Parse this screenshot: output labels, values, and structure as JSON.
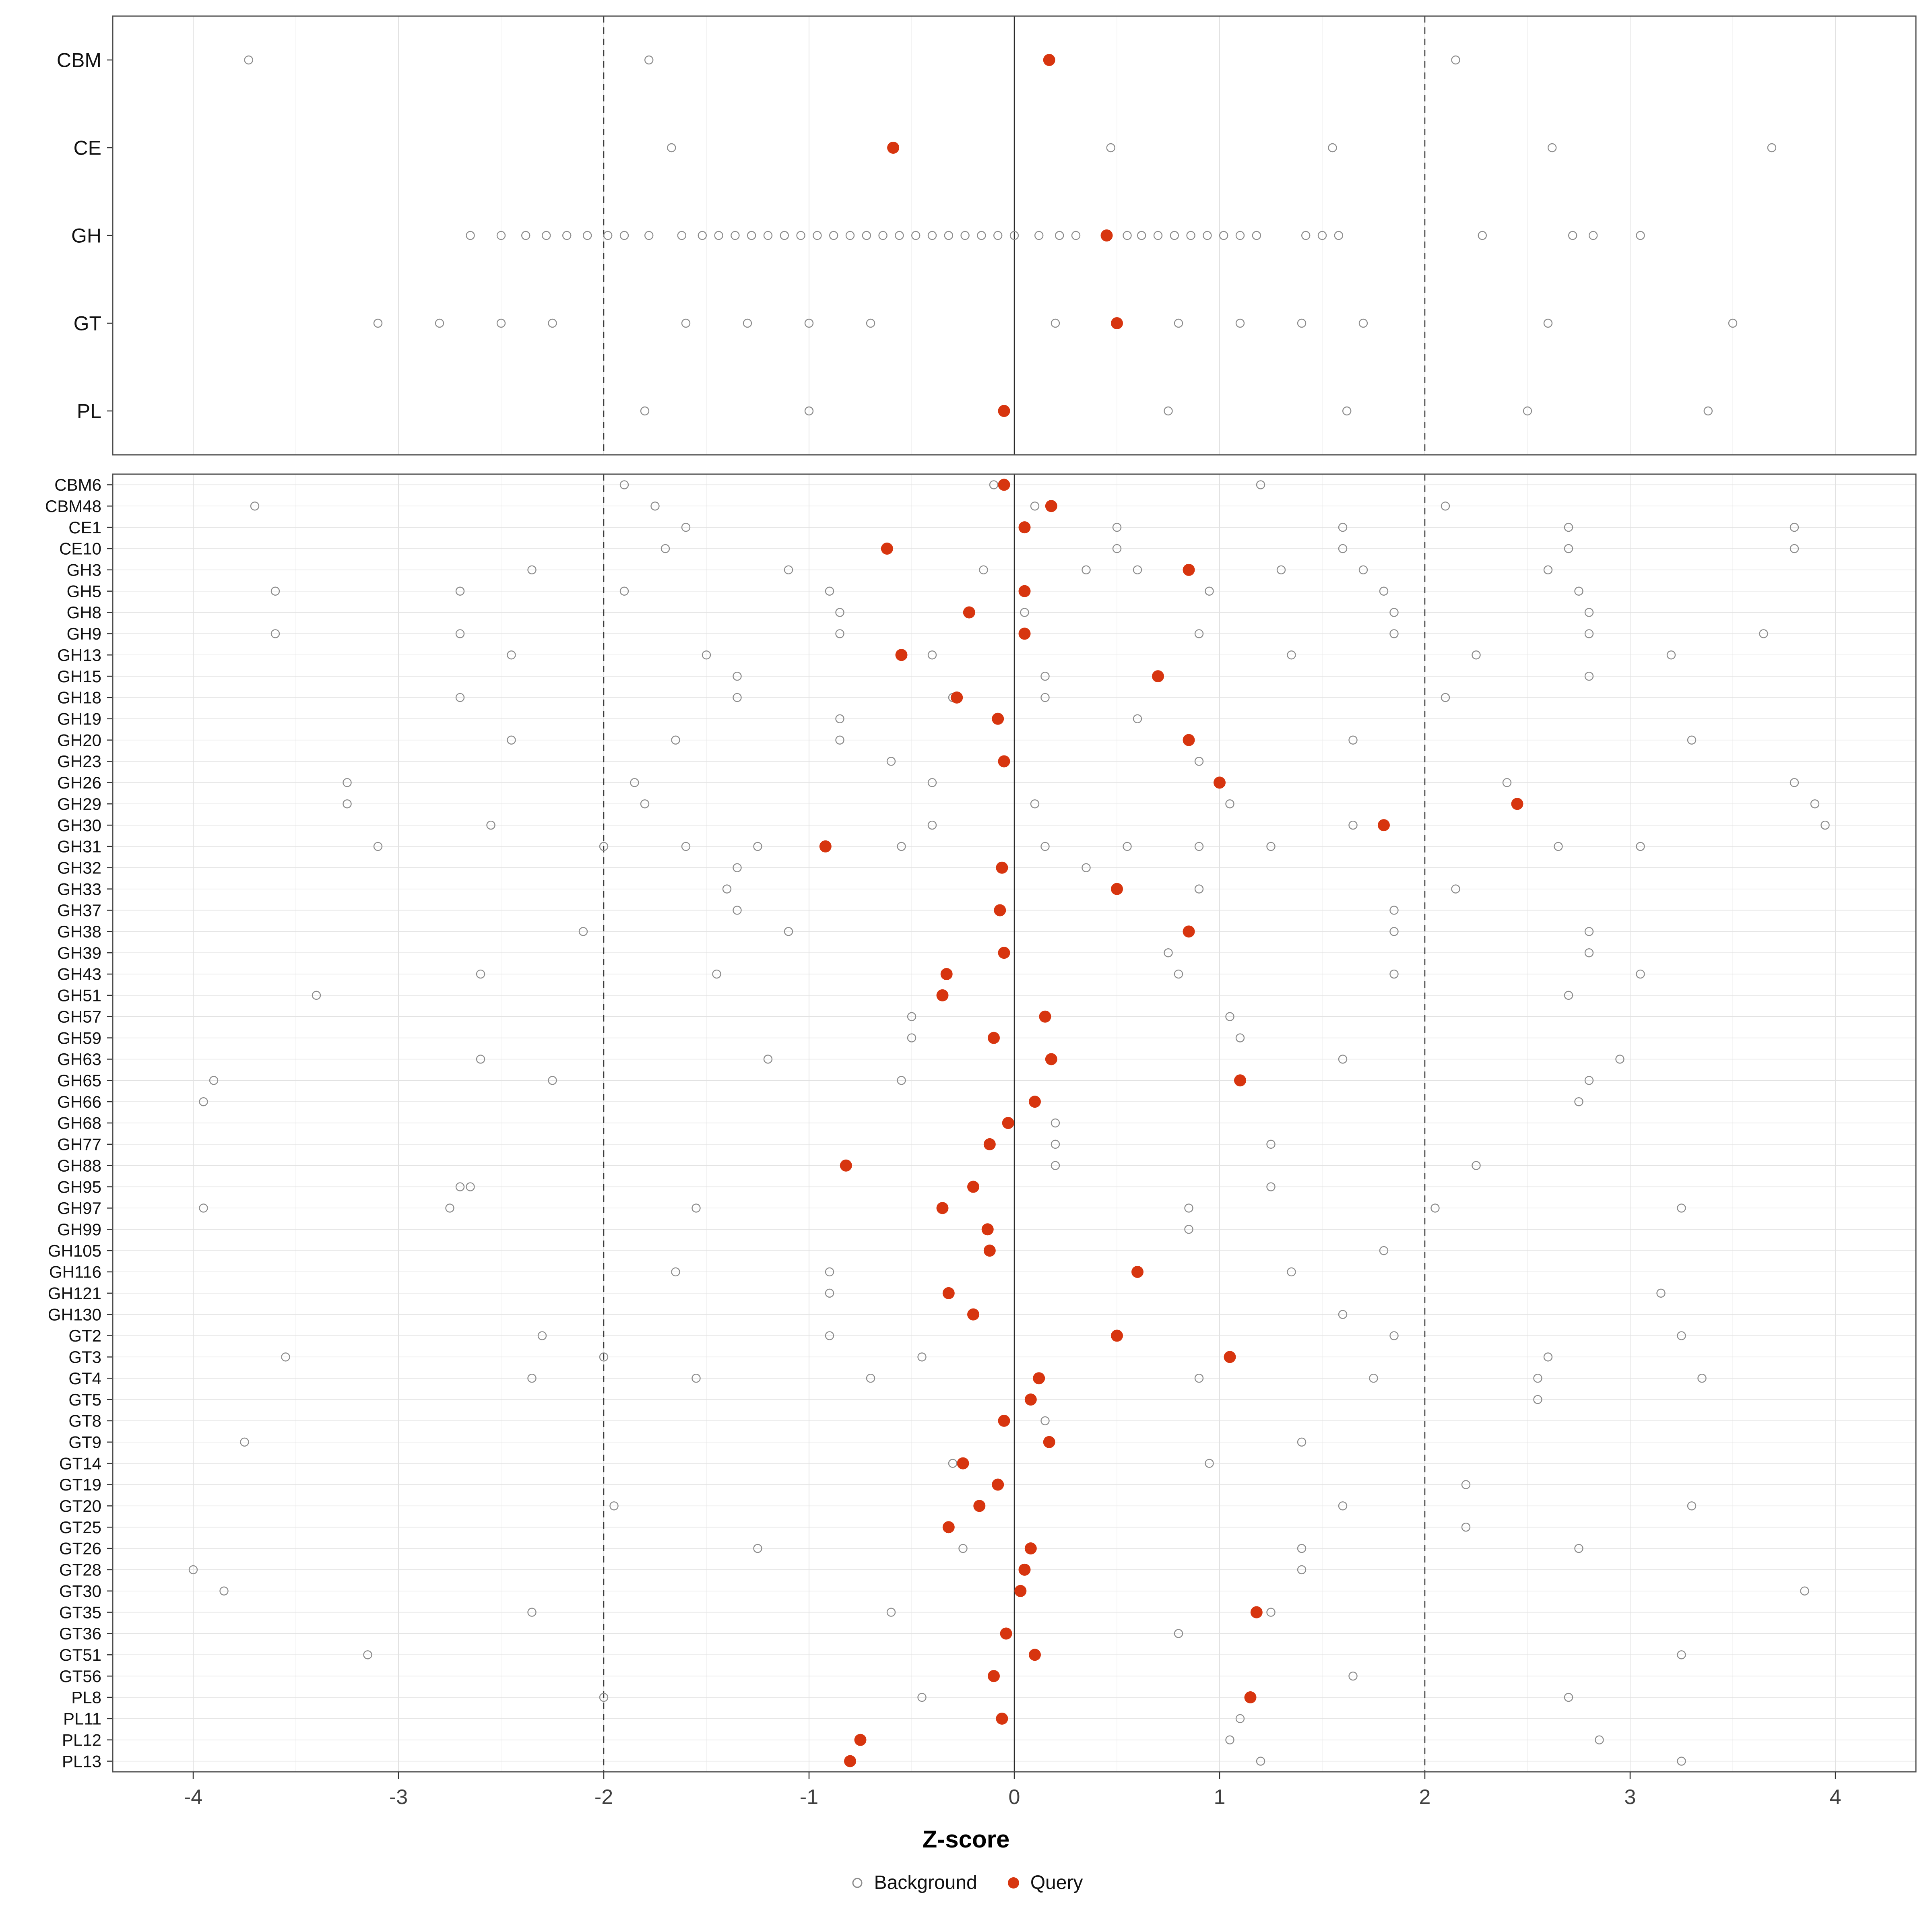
{
  "chart_data": {
    "type": "scatter",
    "title": "",
    "xlabel": "Z-score",
    "xlim": [
      -4.4,
      4.4
    ],
    "x_ticks": [
      -4,
      -3,
      -2,
      -1,
      0,
      1,
      2,
      3,
      4
    ],
    "grid": true,
    "reference_lines": {
      "solid": [
        0
      ],
      "dashed": [
        -2,
        2
      ]
    },
    "legend_position": "bottom",
    "legend": [
      {
        "label": "Background",
        "marker": "open-circle"
      },
      {
        "label": "Query",
        "marker": "filled-circle"
      }
    ],
    "colors": {
      "query": "#D7350F",
      "background_stroke": "#8C8C8C",
      "gridline": "#E2E2E2",
      "panel_border": "#4D4D4D"
    },
    "panels": [
      {
        "name": "class-level",
        "rows": [
          {
            "label": "CBM",
            "query": 0.17,
            "background": [
              -3.73,
              -1.78,
              2.15
            ]
          },
          {
            "label": "CE",
            "query": -0.59,
            "background": [
              -1.67,
              0.47,
              1.55,
              2.62,
              3.69
            ]
          },
          {
            "label": "GH",
            "query": 0.45,
            "background": [
              -2.65,
              -2.5,
              -2.38,
              -2.28,
              -2.18,
              -2.08,
              -1.98,
              -1.9,
              -1.78,
              -1.62,
              -1.52,
              -1.44,
              -1.36,
              -1.28,
              -1.2,
              -1.12,
              -1.04,
              -0.96,
              -0.88,
              -0.8,
              -0.72,
              -0.64,
              -0.56,
              -0.48,
              -0.4,
              -0.32,
              -0.24,
              -0.16,
              -0.08,
              0.0,
              0.12,
              0.22,
              0.3,
              0.55,
              0.62,
              0.7,
              0.78,
              0.86,
              0.94,
              1.02,
              1.1,
              1.18,
              1.42,
              1.5,
              1.58,
              2.28,
              2.72,
              2.82,
              3.05
            ]
          },
          {
            "label": "GT",
            "query": 0.5,
            "background": [
              -3.1,
              -2.8,
              -2.5,
              -2.25,
              -1.6,
              -1.3,
              -1.0,
              -0.7,
              0.2,
              0.8,
              1.1,
              1.4,
              1.7,
              2.6,
              3.5
            ]
          },
          {
            "label": "PL",
            "query": -0.05,
            "background": [
              -1.8,
              -1.0,
              0.75,
              1.62,
              2.5,
              3.38
            ]
          }
        ]
      },
      {
        "name": "family-level",
        "rows": [
          {
            "label": "CBM6",
            "query": -0.05,
            "background": [
              -1.9,
              -0.1,
              1.2
            ]
          },
          {
            "label": "CBM48",
            "query": 0.18,
            "background": [
              -3.7,
              -1.75,
              0.1,
              2.1
            ]
          },
          {
            "label": "CE1",
            "query": 0.05,
            "background": [
              -1.6,
              0.5,
              1.6,
              2.7,
              3.8
            ]
          },
          {
            "label": "CE10",
            "query": -0.62,
            "background": [
              -1.7,
              0.5,
              1.6,
              2.7,
              3.8
            ]
          },
          {
            "label": "GH3",
            "query": 0.85,
            "background": [
              -2.35,
              -1.1,
              -0.15,
              0.35,
              0.6,
              1.3,
              1.7,
              2.6
            ]
          },
          {
            "label": "GH5",
            "query": 0.05,
            "background": [
              -3.6,
              -2.7,
              -1.9,
              -0.9,
              0.95,
              1.8,
              2.75
            ]
          },
          {
            "label": "GH8",
            "query": -0.22,
            "background": [
              -0.85,
              0.05,
              1.85,
              2.8
            ]
          },
          {
            "label": "GH9",
            "query": 0.05,
            "background": [
              -3.6,
              -2.7,
              -0.85,
              0.9,
              1.85,
              2.8,
              3.65
            ]
          },
          {
            "label": "GH13",
            "query": -0.55,
            "background": [
              -2.45,
              -1.5,
              -0.4,
              1.35,
              2.25,
              3.2
            ]
          },
          {
            "label": "GH15",
            "query": 0.7,
            "background": [
              -1.35,
              0.15,
              2.8
            ]
          },
          {
            "label": "GH18",
            "query": -0.28,
            "background": [
              -2.7,
              -1.35,
              -0.3,
              0.15,
              2.1
            ]
          },
          {
            "label": "GH19",
            "query": -0.08,
            "background": [
              -0.85,
              0.6
            ]
          },
          {
            "label": "GH20",
            "query": 0.85,
            "background": [
              -2.45,
              -1.65,
              -0.85,
              1.65,
              3.3
            ]
          },
          {
            "label": "GH23",
            "query": -0.05,
            "background": [
              -0.6,
              0.9
            ]
          },
          {
            "label": "GH26",
            "query": 1.0,
            "background": [
              -3.25,
              -1.85,
              -0.4,
              2.4,
              3.8
            ]
          },
          {
            "label": "GH29",
            "query": 2.45,
            "background": [
              -3.25,
              -1.8,
              0.1,
              1.05,
              3.9
            ]
          },
          {
            "label": "GH30",
            "query": 1.8,
            "background": [
              -2.55,
              -0.4,
              1.65,
              3.95
            ]
          },
          {
            "label": "GH31",
            "query": -0.92,
            "background": [
              -3.1,
              -2.0,
              -1.6,
              -1.25,
              -0.55,
              0.15,
              0.55,
              0.9,
              1.25,
              2.65,
              3.05
            ]
          },
          {
            "label": "GH32",
            "query": -0.06,
            "background": [
              -1.35,
              0.35
            ]
          },
          {
            "label": "GH33",
            "query": 0.5,
            "background": [
              -1.4,
              0.9,
              2.15
            ]
          },
          {
            "label": "GH37",
            "query": -0.07,
            "background": [
              -1.35,
              1.85
            ]
          },
          {
            "label": "GH38",
            "query": 0.85,
            "background": [
              -2.1,
              -1.1,
              1.85,
              2.8
            ]
          },
          {
            "label": "GH39",
            "query": -0.05,
            "background": [
              0.75,
              2.8
            ]
          },
          {
            "label": "GH43",
            "query": -0.33,
            "background": [
              -2.6,
              -1.45,
              0.8,
              1.85,
              3.05
            ]
          },
          {
            "label": "GH51",
            "query": -0.35,
            "background": [
              -3.4,
              2.7
            ]
          },
          {
            "label": "GH57",
            "query": 0.15,
            "background": [
              -0.5,
              1.05
            ]
          },
          {
            "label": "GH59",
            "query": -0.1,
            "background": [
              -0.5,
              1.1
            ]
          },
          {
            "label": "GH63",
            "query": 0.18,
            "background": [
              -2.6,
              -1.2,
              1.6,
              2.95
            ]
          },
          {
            "label": "GH65",
            "query": 1.1,
            "background": [
              -3.9,
              -2.25,
              -0.55,
              2.8
            ]
          },
          {
            "label": "GH66",
            "query": 0.1,
            "background": [
              -3.95,
              2.75
            ]
          },
          {
            "label": "GH68",
            "query": -0.03,
            "background": [
              0.2
            ]
          },
          {
            "label": "GH77",
            "query": -0.12,
            "background": [
              0.2,
              1.25
            ]
          },
          {
            "label": "GH88",
            "query": -0.82,
            "background": [
              0.2,
              2.25
            ]
          },
          {
            "label": "GH95",
            "query": -0.2,
            "background": [
              -2.7,
              -2.65,
              1.25
            ]
          },
          {
            "label": "GH97",
            "query": -0.35,
            "background": [
              -3.95,
              -2.75,
              -1.55,
              0.85,
              2.05,
              3.25
            ]
          },
          {
            "label": "GH99",
            "query": -0.13,
            "background": [
              0.85
            ]
          },
          {
            "label": "GH105",
            "query": -0.12,
            "background": [
              1.8
            ]
          },
          {
            "label": "GH116",
            "query": 0.6,
            "background": [
              -1.65,
              -0.9,
              1.35
            ]
          },
          {
            "label": "GH121",
            "query": -0.32,
            "background": [
              -0.9,
              3.15
            ]
          },
          {
            "label": "GH130",
            "query": -0.2,
            "background": [
              1.6
            ]
          },
          {
            "label": "GT2",
            "query": 0.5,
            "background": [
              -2.3,
              -0.9,
              1.85,
              3.25
            ]
          },
          {
            "label": "GT3",
            "query": 1.05,
            "background": [
              -3.55,
              -2.0,
              -0.45,
              2.6
            ]
          },
          {
            "label": "GT4",
            "query": 0.12,
            "background": [
              -2.35,
              -1.55,
              -0.7,
              0.9,
              1.75,
              2.55,
              3.35
            ]
          },
          {
            "label": "GT5",
            "query": 0.08,
            "background": [
              2.55
            ]
          },
          {
            "label": "GT8",
            "query": -0.05,
            "background": [
              0.15
            ]
          },
          {
            "label": "GT9",
            "query": 0.17,
            "background": [
              -3.75,
              1.4
            ]
          },
          {
            "label": "GT14",
            "query": -0.25,
            "background": [
              -0.3,
              0.95
            ]
          },
          {
            "label": "GT19",
            "query": -0.08,
            "background": [
              2.2
            ]
          },
          {
            "label": "GT20",
            "query": -0.17,
            "background": [
              -1.95,
              1.6,
              3.3
            ]
          },
          {
            "label": "GT25",
            "query": -0.32,
            "background": [
              2.2
            ]
          },
          {
            "label": "GT26",
            "query": 0.08,
            "background": [
              -1.25,
              -0.25,
              1.4,
              2.75
            ]
          },
          {
            "label": "GT28",
            "query": 0.05,
            "background": [
              -4.0,
              1.4
            ]
          },
          {
            "label": "GT30",
            "query": 0.03,
            "background": [
              -3.85,
              3.85
            ]
          },
          {
            "label": "GT35",
            "query": 1.18,
            "background": [
              -2.35,
              -0.6,
              1.25
            ]
          },
          {
            "label": "GT36",
            "query": -0.04,
            "background": [
              0.8
            ]
          },
          {
            "label": "GT51",
            "query": 0.1,
            "background": [
              -3.15,
              3.25
            ]
          },
          {
            "label": "GT56",
            "query": -0.1,
            "background": [
              1.65
            ]
          },
          {
            "label": "PL8",
            "query": 1.15,
            "background": [
              -2.0,
              -0.45,
              2.7
            ]
          },
          {
            "label": "PL11",
            "query": -0.06,
            "background": [
              1.1
            ]
          },
          {
            "label": "PL12",
            "query": -0.75,
            "background": [
              1.05,
              2.85
            ]
          },
          {
            "label": "PL13",
            "query": -0.8,
            "background": [
              1.2,
              3.25
            ]
          }
        ]
      }
    ]
  }
}
